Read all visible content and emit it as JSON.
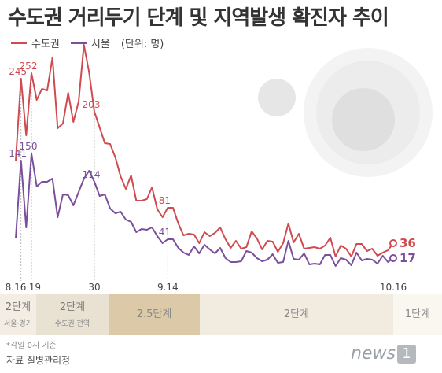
{
  "title": "수도권 거리두기 단계 및 지역발생 확진자 추이",
  "legend": {
    "seoul_metro": "수도권",
    "seoul": "서울",
    "unit": "(단위: 명)"
  },
  "colors": {
    "seoul_metro": "#cf4b50",
    "seoul": "#7b4f9b",
    "band_tint": "#e7dcc7",
    "band_dark": "#cdb58f",
    "band_light": "#f3ede3"
  },
  "chart_data": {
    "type": "line",
    "x_ticks": [
      "8.16",
      "19",
      "30",
      "9.14",
      "10.16"
    ],
    "ylim": [
      0,
      300
    ],
    "series": [
      {
        "name": "수도권",
        "values": [
          141,
          245,
          173,
          252,
          218,
          232,
          230,
          272,
          182,
          188,
          227,
          190,
          216,
          288,
          253,
          203,
          183,
          163,
          162,
          145,
          121,
          105,
          122,
          90,
          90,
          92,
          107,
          79,
          69,
          81,
          81,
          61,
          46,
          48,
          47,
          36,
          50,
          45,
          49,
          56,
          41,
          30,
          39,
          29,
          31,
          51,
          42,
          28,
          39,
          38,
          25,
          36,
          61,
          37,
          48,
          29,
          30,
          31,
          29,
          33,
          43,
          19,
          33,
          29,
          19,
          35,
          35,
          26,
          29,
          20,
          24,
          27,
          36
        ],
        "labels": [
          {
            "i": 1,
            "v": "245"
          },
          {
            "i": 3,
            "v": "252"
          },
          {
            "i": 15,
            "v": "203"
          },
          {
            "i": 29,
            "v": "81"
          },
          {
            "i": 72,
            "v": "36"
          }
        ]
      },
      {
        "name": "서울",
        "values": [
          42,
          141,
          56,
          150,
          108,
          114,
          114,
          118,
          69,
          98,
          97,
          84,
          101,
          118,
          128,
          114,
          96,
          98,
          80,
          74,
          76,
          66,
          63,
          50,
          54,
          53,
          56,
          45,
          36,
          41,
          41,
          30,
          24,
          21,
          32,
          23,
          34,
          28,
          23,
          30,
          17,
          12,
          12,
          13,
          26,
          24,
          17,
          13,
          15,
          22,
          11,
          12,
          39,
          16,
          15,
          23,
          9,
          10,
          9,
          21,
          21,
          7,
          17,
          15,
          8,
          24,
          14,
          16,
          15,
          10,
          20,
          12,
          17
        ],
        "labels": [
          {
            "i": 1,
            "v": "141"
          },
          {
            "i": 3,
            "v": "150"
          },
          {
            "i": 15,
            "v": "114"
          },
          {
            "i": 29,
            "v": "41"
          },
          {
            "i": 72,
            "v": "17"
          }
        ]
      }
    ]
  },
  "bands": [
    {
      "name": "2단계",
      "sub": "서울·경기"
    },
    {
      "name": "2단계",
      "sub": "수도권 전역"
    },
    {
      "name": "2.5단계",
      "sub": ""
    },
    {
      "name": "2단계",
      "sub": ""
    },
    {
      "name": "1단계",
      "sub": ""
    }
  ],
  "footnote": "*각일 0시 기준",
  "source": "자료 질병관리청",
  "logo": {
    "text": "news",
    "mark": "1"
  }
}
